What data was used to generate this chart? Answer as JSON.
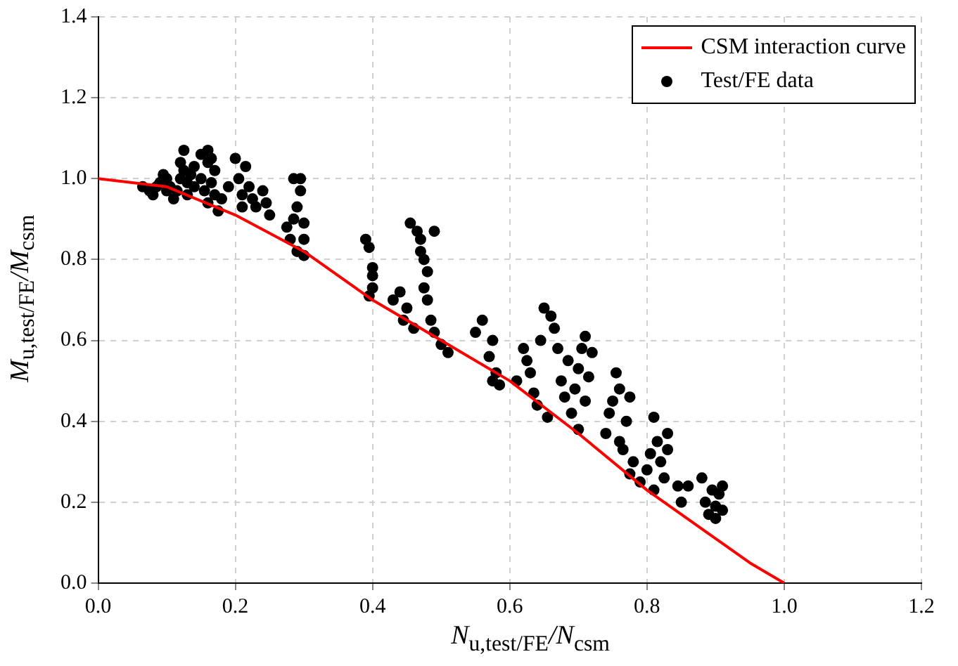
{
  "chart_data": {
    "type": "scatter",
    "xlabel": "N$_{u,test/FE}$/N$_{csm}$",
    "ylabel": "M$_{u,test/FE}$/M$_{csm}$",
    "xlim": [
      0,
      1.2
    ],
    "ylim": [
      0,
      1.4
    ],
    "xticks": [
      {
        "value": 0,
        "label": "0.0"
      },
      {
        "value": 0.2,
        "label": "0.2"
      },
      {
        "value": 0.4,
        "label": "0.4"
      },
      {
        "value": 0.6,
        "label": "0.6"
      },
      {
        "value": 0.8,
        "label": "0.8"
      },
      {
        "value": 1,
        "label": "1.0"
      },
      {
        "value": 1.2,
        "label": "1.2"
      }
    ],
    "yticks": [
      {
        "value": 0,
        "label": "0.0"
      },
      {
        "value": 0.2,
        "label": "0.2"
      },
      {
        "value": 0.4,
        "label": "0.4"
      },
      {
        "value": 0.6,
        "label": "0.6"
      },
      {
        "value": 0.8,
        "label": "0.8"
      },
      {
        "value": 1,
        "label": "1.0"
      },
      {
        "value": 1.2,
        "label": "1.2"
      },
      {
        "value": 1.4,
        "label": "1.4"
      }
    ],
    "grid": true,
    "legend": "top right",
    "series": [
      {
        "name": "CSM interaction curve",
        "type": "line",
        "marker": "none",
        "color": "#ff0000",
        "x": [
          0,
          0.1,
          0.2,
          0.3,
          0.4,
          0.5,
          0.6,
          0.7,
          0.8,
          0.9,
          0.95,
          1.0
        ],
        "values": [
          1.0,
          0.98,
          0.91,
          0.82,
          0.7,
          0.6,
          0.5,
          0.37,
          0.23,
          0.11,
          0.05,
          0
        ]
      },
      {
        "name": "Test/FE data",
        "type": "scatter",
        "marker": "circle",
        "color": "#000000",
        "x": [
          0.065,
          0.075,
          0.08,
          0.085,
          0.09,
          0.095,
          0.1,
          0.1,
          0.105,
          0.11,
          0.115,
          0.12,
          0.12,
          0.125,
          0.125,
          0.13,
          0.13,
          0.135,
          0.14,
          0.14,
          0.15,
          0.15,
          0.155,
          0.16,
          0.16,
          0.165,
          0.17,
          0.17,
          0.175,
          0.18,
          0.16,
          0.165,
          0.19,
          0.2,
          0.205,
          0.21,
          0.21,
          0.215,
          0.22,
          0.225,
          0.23,
          0.24,
          0.245,
          0.25,
          0.275,
          0.28,
          0.285,
          0.29,
          0.29,
          0.295,
          0.3,
          0.3,
          0.295,
          0.285,
          0.3,
          0.39,
          0.395,
          0.4,
          0.4,
          0.4,
          0.395,
          0.43,
          0.44,
          0.445,
          0.45,
          0.455,
          0.46,
          0.465,
          0.47,
          0.47,
          0.475,
          0.48,
          0.48,
          0.475,
          0.485,
          0.49,
          0.5,
          0.51,
          0.49,
          0.55,
          0.56,
          0.57,
          0.575,
          0.58,
          0.585,
          0.575,
          0.61,
          0.62,
          0.625,
          0.63,
          0.635,
          0.64,
          0.645,
          0.65,
          0.655,
          0.66,
          0.665,
          0.67,
          0.675,
          0.68,
          0.685,
          0.69,
          0.695,
          0.7,
          0.705,
          0.71,
          0.715,
          0.72,
          0.7,
          0.71,
          0.74,
          0.745,
          0.75,
          0.755,
          0.76,
          0.765,
          0.77,
          0.775,
          0.78,
          0.775,
          0.76,
          0.79,
          0.8,
          0.805,
          0.81,
          0.815,
          0.82,
          0.825,
          0.83,
          0.83,
          0.81,
          0.845,
          0.85,
          0.86,
          0.88,
          0.885,
          0.89,
          0.895,
          0.9,
          0.905,
          0.91,
          0.91,
          0.9
        ],
        "values": [
          0.98,
          0.97,
          0.96,
          0.98,
          0.99,
          1.01,
          1.0,
          0.97,
          0.98,
          0.95,
          0.97,
          1.0,
          1.04,
          1.07,
          1.02,
          0.99,
          0.96,
          1.01,
          0.98,
          1.03,
          1.06,
          1.0,
          0.97,
          1.04,
          0.94,
          0.99,
          1.02,
          0.96,
          0.92,
          0.95,
          1.07,
          1.05,
          0.98,
          1.05,
          1.0,
          0.96,
          0.93,
          1.03,
          0.98,
          0.95,
          0.93,
          0.97,
          0.94,
          0.91,
          0.88,
          0.85,
          1.0,
          0.93,
          0.82,
          0.97,
          0.89,
          0.81,
          1.0,
          0.9,
          0.85,
          0.85,
          0.83,
          0.78,
          0.76,
          0.73,
          0.71,
          0.7,
          0.72,
          0.65,
          0.68,
          0.89,
          0.63,
          0.87,
          0.85,
          0.82,
          0.8,
          0.77,
          0.7,
          0.73,
          0.65,
          0.62,
          0.59,
          0.57,
          0.87,
          0.62,
          0.65,
          0.56,
          0.6,
          0.52,
          0.49,
          0.5,
          0.5,
          0.58,
          0.55,
          0.52,
          0.47,
          0.44,
          0.6,
          0.68,
          0.41,
          0.66,
          0.63,
          0.58,
          0.5,
          0.46,
          0.55,
          0.42,
          0.48,
          0.53,
          0.58,
          0.45,
          0.51,
          0.57,
          0.38,
          0.61,
          0.37,
          0.42,
          0.45,
          0.52,
          0.48,
          0.33,
          0.4,
          0.46,
          0.3,
          0.27,
          0.35,
          0.25,
          0.28,
          0.32,
          0.41,
          0.35,
          0.3,
          0.26,
          0.37,
          0.33,
          0.23,
          0.24,
          0.2,
          0.24,
          0.26,
          0.2,
          0.17,
          0.23,
          0.16,
          0.22,
          0.18,
          0.24,
          0.19
        ]
      }
    ]
  }
}
